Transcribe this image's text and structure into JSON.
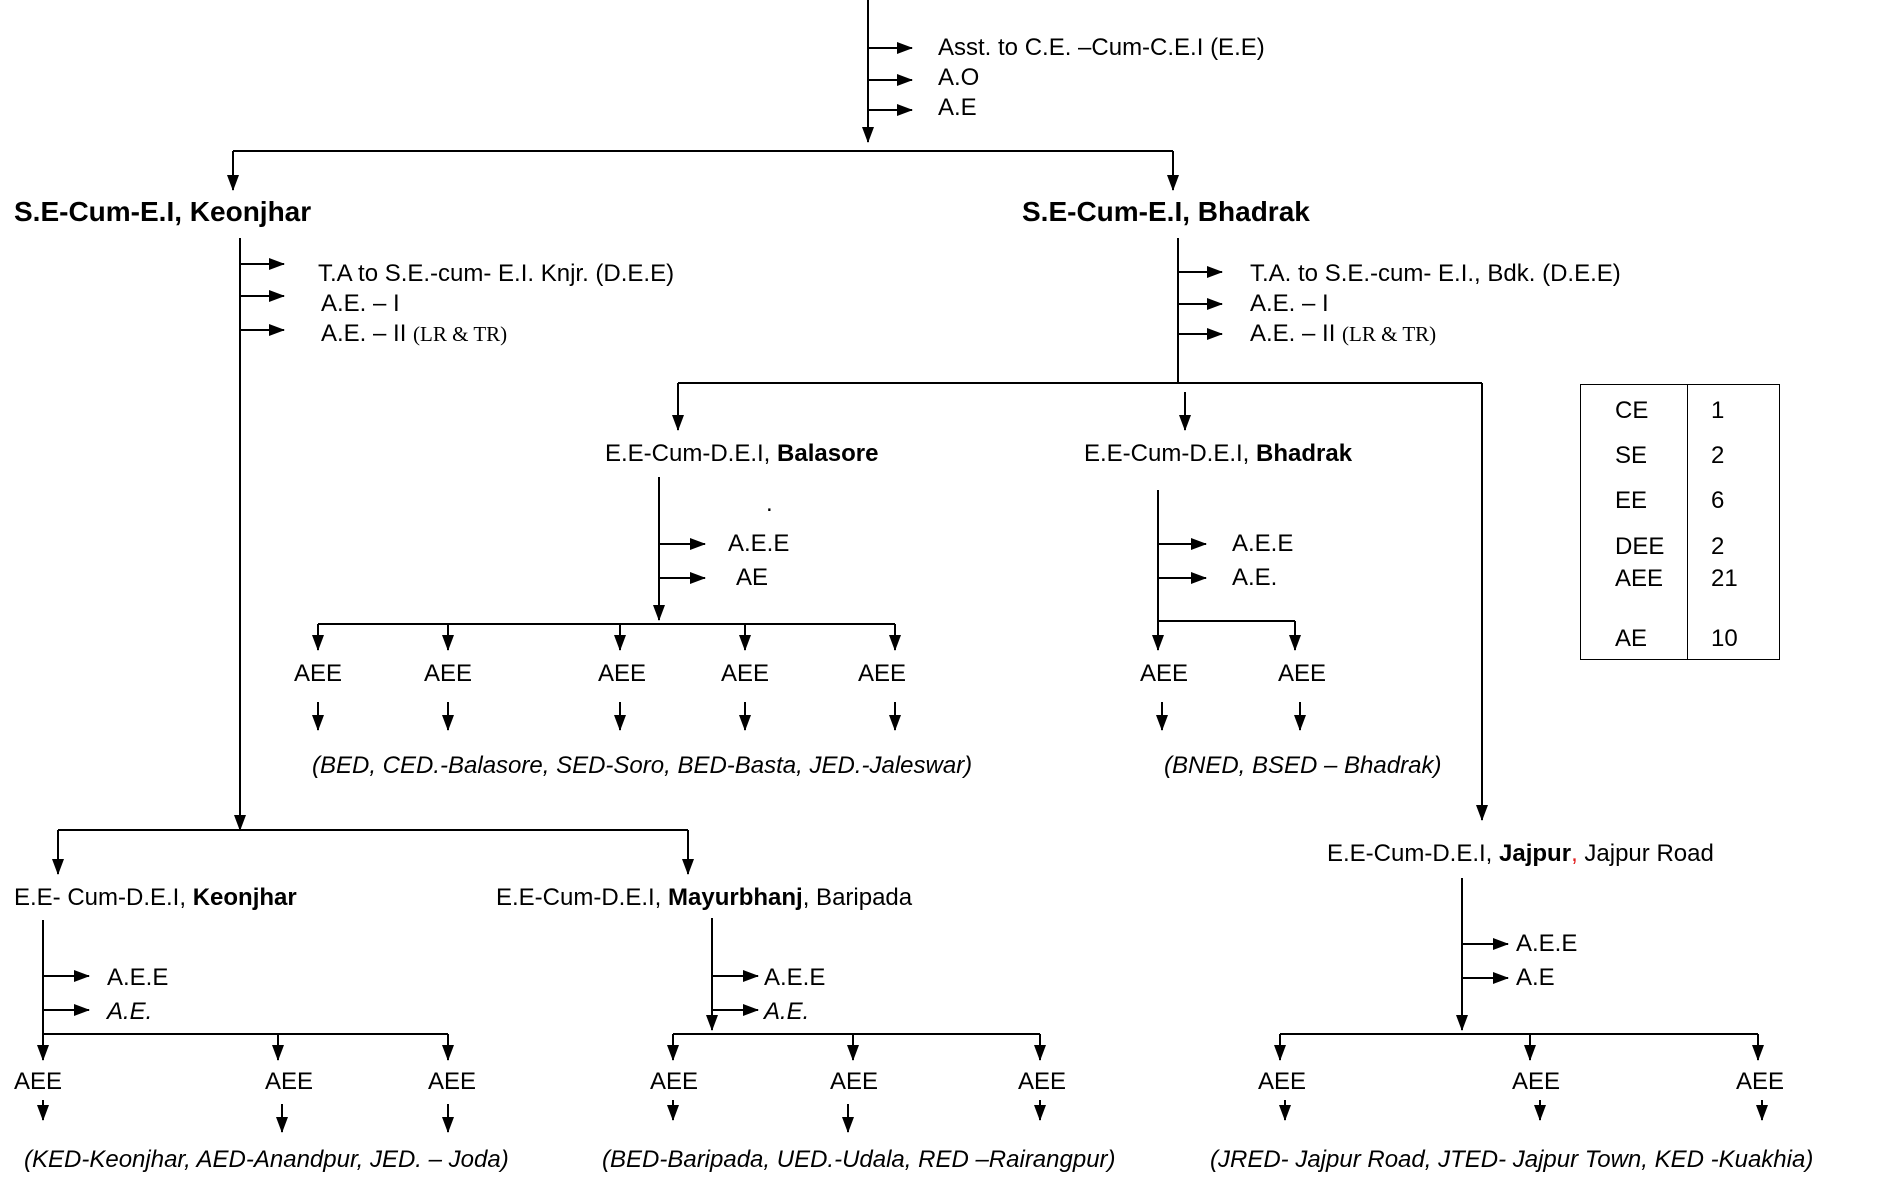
{
  "top": {
    "staff": [
      "Asst. to C.E. –Cum-C.E.I (E.E)",
      "A.O",
      "A.E"
    ]
  },
  "keonjhar_circle": {
    "prefix": "S.E-Cum-E.I, ",
    "name": "Keonjhar",
    "staff_1": "T.A to S.E.-cum- E.I. Knjr. (D.E.E)",
    "staff_2": "A.E. – I",
    "staff_3": "A.E. – II ",
    "staff_3_note": "(LR & TR)"
  },
  "bhadrak_circle": {
    "name": "S.E-Cum-E.I, Bhadrak",
    "staff_1": "T.A. to S.E.-cum- E.I., Bdk. (D.E.E)",
    "staff_2": "A.E. – I",
    "staff_3": "A.E. – II ",
    "staff_3_note": "(LR & TR)"
  },
  "balasore_div": {
    "prefix": "E.E-Cum-D.E.I, ",
    "name": "Balasore",
    "dot": ".",
    "staff": [
      "A.E.E",
      "AE"
    ],
    "aee": [
      "AEE",
      "AEE",
      "AEE",
      "AEE",
      "AEE"
    ],
    "footnote": "(BED, CED.-Balasore, SED-Soro, BED-Basta, JED.-Jaleswar)"
  },
  "bhadrak_div": {
    "prefix": "E.E-Cum-D.E.I, ",
    "name": "Bhadrak",
    "staff": [
      "A.E.E",
      "A.E."
    ],
    "aee": [
      "AEE",
      "AEE"
    ],
    "footnote": "(BNED, BSED – Bhadrak)"
  },
  "jajpur_div": {
    "prefix": "E.E-Cum-D.E.I, ",
    "name": "Jajpur",
    "comma": ",",
    "suffix": " Jajpur Road",
    "staff": [
      "A.E.E",
      "A.E"
    ],
    "aee": [
      "AEE",
      "AEE",
      "AEE"
    ],
    "footnote": "(JRED- Jajpur Road, JTED- Jajpur Town, KED -Kuakhia)"
  },
  "keonjhar_div": {
    "prefix": "E.E- Cum-D.E.I,  ",
    "name": "Keonjhar",
    "staff": [
      "A.E.E",
      "A.E."
    ],
    "aee": [
      "AEE",
      "AEE",
      "AEE"
    ],
    "footnote": "(KED-Keonjhar, AED-Anandpur, JED. – Joda)"
  },
  "mayurbhanj_div": {
    "prefix": "E.E-Cum-D.E.I, ",
    "name": "Mayurbhanj",
    "suffix": ", Baripada",
    "staff": [
      "A.E.E",
      "A.E."
    ],
    "aee": [
      "AEE",
      "AEE",
      "AEE"
    ],
    "footnote": "(BED-Baripada, UED.-Udala, RED –Rairangpur)"
  },
  "counts": [
    {
      "k": "CE",
      "v": "1"
    },
    {
      "k": "SE",
      "v": "2"
    },
    {
      "k": "EE",
      "v": "6"
    },
    {
      "k": "DEE",
      "v": "2"
    },
    {
      "k": "AEE",
      "v": "21"
    },
    {
      "k": "AE",
      "v": "10"
    }
  ],
  "colors": {
    "line": "#000000",
    "accent_comma": "#e02020"
  }
}
